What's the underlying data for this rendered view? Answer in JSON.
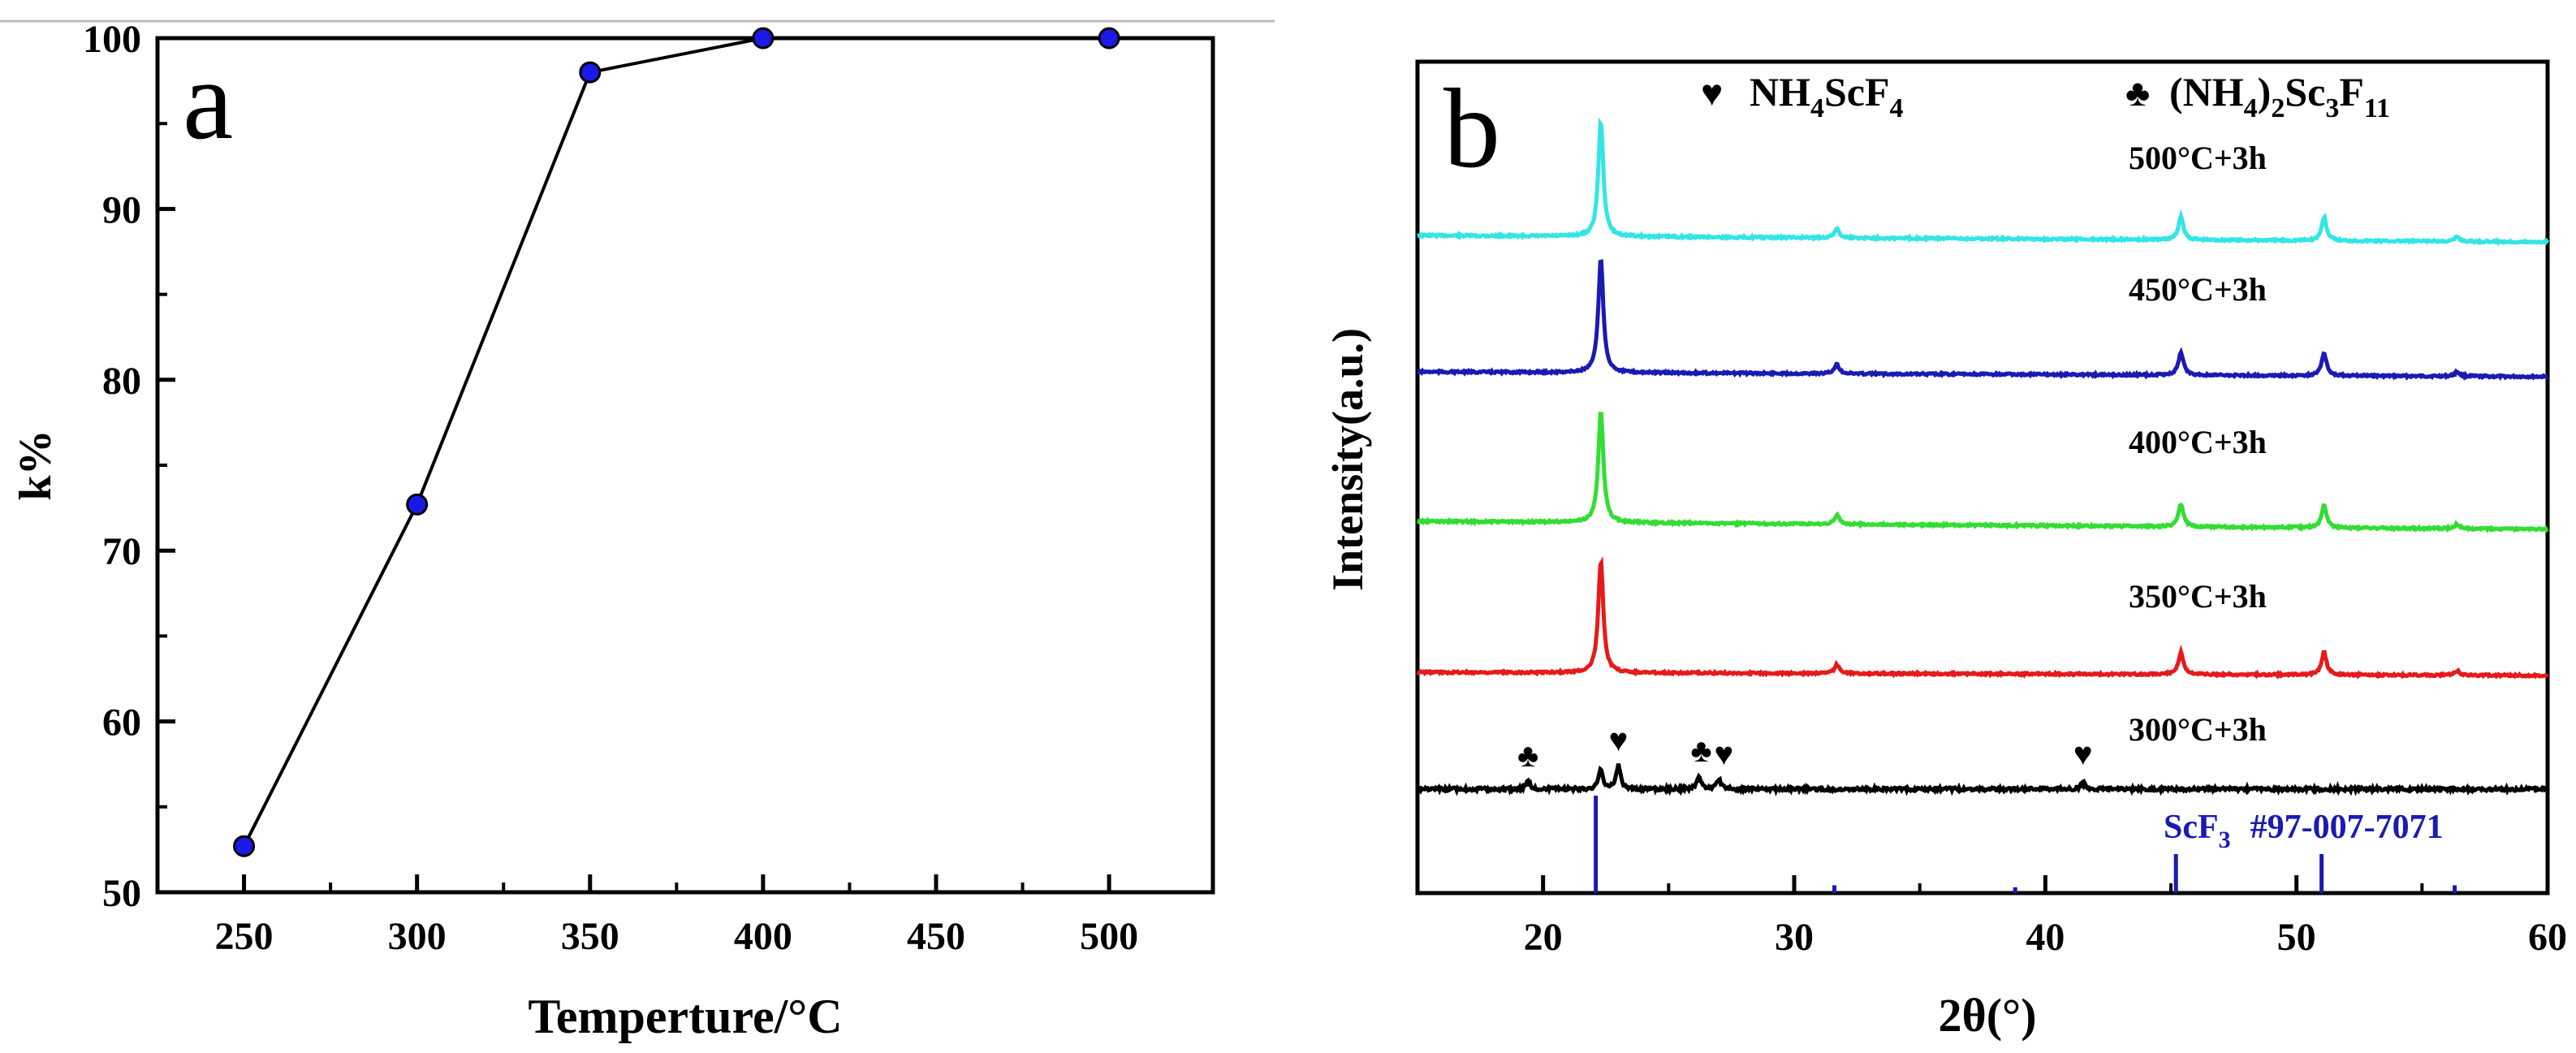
{
  "chart_data": [
    {
      "type": "line",
      "panel_label": "a",
      "title": "",
      "xlabel": "Temperture/°C",
      "ylabel": "k%",
      "xlim": [
        225,
        530
      ],
      "ylim": [
        50,
        100
      ],
      "xticks": [
        250,
        300,
        350,
        400,
        450,
        500
      ],
      "yticks": [
        50,
        60,
        70,
        80,
        90,
        100
      ],
      "grid": false,
      "marker_color": "#1a1ae6",
      "line_color": "#000000",
      "series": [
        {
          "name": "k%",
          "x": [
            250,
            300,
            350,
            400,
            500
          ],
          "y": [
            52.7,
            72.7,
            98.0,
            100.0,
            100.0
          ]
        }
      ]
    },
    {
      "type": "line",
      "panel_label": "b",
      "title": "",
      "xlabel": "2θ(°)",
      "ylabel": "Intensity(a.u.)",
      "xlim": [
        15,
        60
      ],
      "xticks": [
        20,
        30,
        40,
        50,
        60
      ],
      "y_ticks_labeled": false,
      "legend": [
        {
          "symbol": "♥",
          "label": "NH4ScF4",
          "main": "NH",
          "sub1": "4",
          "mid": "ScF",
          "sub2": "4",
          "tail": ""
        },
        {
          "symbol": "♣",
          "label": "(NH4)2Sc3F11",
          "main": "(NH",
          "sub1": "4",
          "mid": ")",
          "sub2": "2",
          "tail": "Sc",
          "sub3": "3",
          "tail2": "F",
          "sub4": "11"
        }
      ],
      "series": [
        {
          "name": "500°C+3h",
          "color": "#33e5e5",
          "peaks": [
            [
              22.3,
              1.0
            ],
            [
              31.7,
              0.08
            ],
            [
              45.4,
              0.2
            ],
            [
              51.1,
              0.2
            ],
            [
              56.4,
              0.04
            ]
          ]
        },
        {
          "name": "450°C+3h",
          "color": "#1a1ab4",
          "peaks": [
            [
              22.3,
              1.0
            ],
            [
              31.7,
              0.08
            ],
            [
              45.4,
              0.2
            ],
            [
              51.1,
              0.2
            ],
            [
              56.4,
              0.04
            ]
          ]
        },
        {
          "name": "400°C+3h",
          "color": "#33dd33",
          "peaks": [
            [
              22.3,
              1.0
            ],
            [
              31.7,
              0.08
            ],
            [
              45.4,
              0.2
            ],
            [
              51.1,
              0.2
            ],
            [
              56.4,
              0.04
            ]
          ]
        },
        {
          "name": "350°C+3h",
          "color": "#e61a1a",
          "peaks": [
            [
              22.3,
              1.0
            ],
            [
              31.7,
              0.08
            ],
            [
              45.4,
              0.2
            ],
            [
              51.1,
              0.2
            ],
            [
              56.4,
              0.04
            ]
          ]
        },
        {
          "name": "300°C+3h",
          "color": "#000000",
          "peaks": [
            [
              19.4,
              0.05
            ],
            [
              22.3,
              0.12
            ],
            [
              23.0,
              0.15
            ],
            [
              26.2,
              0.08
            ],
            [
              27.0,
              0.06
            ],
            [
              41.5,
              0.04
            ]
          ]
        }
      ],
      "peak_markers_300": [
        {
          "symbol": "♣",
          "x": 19.4
        },
        {
          "symbol": "♥",
          "x": 23.0
        },
        {
          "symbol": "♣",
          "x": 26.3
        },
        {
          "symbol": "♥",
          "x": 27.2
        },
        {
          "symbol": "♥",
          "x": 41.5
        }
      ],
      "reference": {
        "label": "ScF3 #97-007-7071",
        "name_main": "ScF",
        "name_sub": "3",
        "code": "#97-007-7071",
        "color": "#1a1ab4",
        "lines": [
          [
            22.1,
            1.0
          ],
          [
            31.6,
            0.08
          ],
          [
            38.8,
            0.06
          ],
          [
            45.2,
            0.4
          ],
          [
            51.0,
            0.4
          ],
          [
            56.3,
            0.08
          ]
        ]
      }
    }
  ]
}
